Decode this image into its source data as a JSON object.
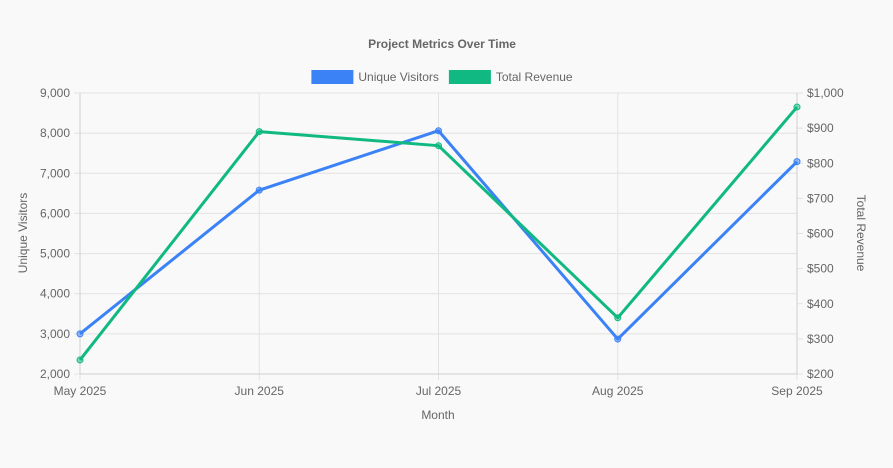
{
  "chart_data": {
    "type": "line",
    "title": "Project Metrics Over Time",
    "xlabel": "Month",
    "categories": [
      "May 2025",
      "Jun 2025",
      "Jul 2025",
      "Aug 2025",
      "Sep 2025"
    ],
    "series": [
      {
        "name": "Unique Visitors",
        "axis": "left",
        "color": "#3b82f6",
        "values": [
          3000,
          6580,
          8060,
          2870,
          7290
        ]
      },
      {
        "name": "Total Revenue",
        "axis": "right",
        "color": "#10b981",
        "values": [
          240,
          890,
          850,
          360,
          960
        ]
      }
    ],
    "y_left": {
      "label": "Unique Visitors",
      "ylim": [
        2000,
        9000
      ],
      "ticks": [
        "2,000",
        "3,000",
        "4,000",
        "5,000",
        "6,000",
        "7,000",
        "8,000",
        "9,000"
      ]
    },
    "y_right": {
      "label": "Total Revenue",
      "ylim": [
        200,
        1000
      ],
      "ticks": [
        "$200",
        "$300",
        "$400",
        "$500",
        "$600",
        "$700",
        "$800",
        "$900",
        "$1,000"
      ]
    },
    "grid": true,
    "legend_position": "top"
  }
}
